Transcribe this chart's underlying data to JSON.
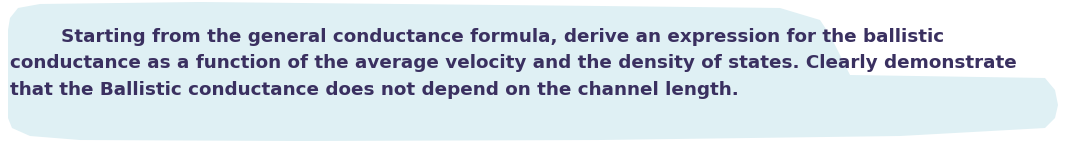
{
  "text_line1": "        Starting from the general conductance formula, derive an expression for the ballistic",
  "text_line2": "conductance as a function of the average velocity and the density of states. Clearly demonstrate",
  "text_line3": "that the Ballistic conductance does not depend on the channel length.",
  "text_color": "#3a3060",
  "font_size": 13.2,
  "fig_width": 10.71,
  "fig_height": 1.44,
  "box_facecolor": "#dff0f4",
  "bg_color": "#ffffff"
}
